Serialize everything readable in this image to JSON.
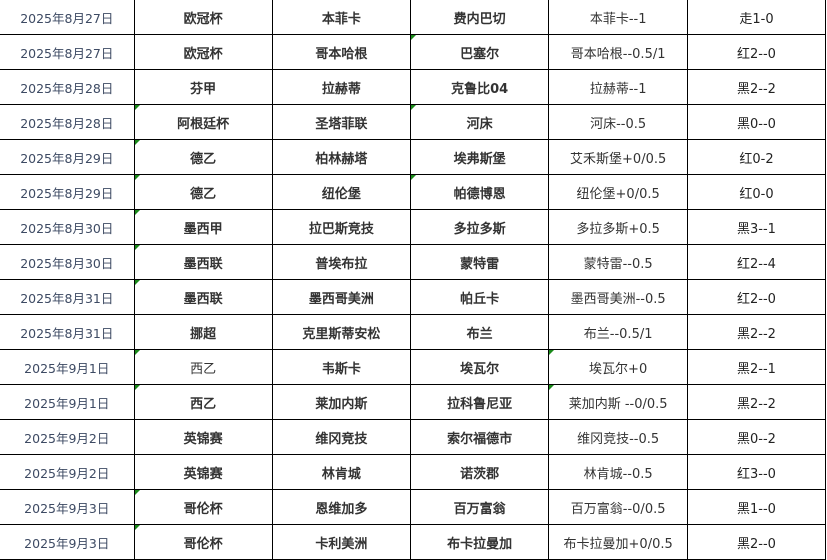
{
  "marker_color": "#1a8a1a",
  "rows": [
    {
      "date": "2025年8月27日",
      "league": "欧冠杯",
      "home": "本菲卡",
      "away": "费内巴切",
      "tip": "本菲卡--1",
      "result": "走1-0",
      "marks": []
    },
    {
      "date": "2025年8月27日",
      "league": "欧冠杯",
      "home": "哥本哈根",
      "away": "巴塞尔",
      "tip": "哥本哈根--0.5/1",
      "result": "红2--0",
      "marks": [
        "away"
      ]
    },
    {
      "date": "2025年8月28日",
      "league": "芬甲",
      "home": "拉赫蒂",
      "away": "克鲁比04",
      "tip": "拉赫蒂--1",
      "result": "黑2--2",
      "marks": []
    },
    {
      "date": "2025年8月28日",
      "league": "阿根廷杯",
      "home": "圣塔菲联",
      "away": "河床",
      "tip": "河床--0.5",
      "result": "黑0--0",
      "marks": [
        "league",
        "away"
      ]
    },
    {
      "date": "2025年8月29日",
      "league": "德乙",
      "home": "柏林赫塔",
      "away": "埃弗斯堡",
      "tip": "艾禾斯堡+0/0.5",
      "result": "红0-2",
      "marks": [
        "league"
      ]
    },
    {
      "date": "2025年8月29日",
      "league": "德乙",
      "home": "纽伦堡",
      "away": "帕德博恩",
      "tip": "纽伦堡+0/0.5",
      "result": "红0-0",
      "marks": [
        "league",
        "away"
      ]
    },
    {
      "date": "2025年8月30日",
      "league": "墨西甲",
      "home": "拉巴斯竞技",
      "away": "多拉多斯",
      "tip": "多拉多斯+0.5",
      "result": "黑3--1",
      "marks": [
        "league"
      ]
    },
    {
      "date": "2025年8月30日",
      "league": "墨西联",
      "home": "普埃布拉",
      "away": "蒙特雷",
      "tip": "蒙特雷--0.5",
      "result": "红2--4",
      "marks": [
        "league"
      ]
    },
    {
      "date": "2025年8月31日",
      "league": "墨西联",
      "home": "墨西哥美洲",
      "away": "帕丘卡",
      "tip": "墨西哥美洲--0.5",
      "result": "红2--0",
      "marks": [
        "league"
      ]
    },
    {
      "date": "2025年8月31日",
      "league": "挪超",
      "home": "克里斯蒂安松",
      "away": "布兰",
      "tip": "布兰--0.5/1",
      "result": "黑2--2",
      "marks": []
    },
    {
      "date": "2025年9月1日",
      "league": "西乙",
      "home": "韦斯卡",
      "away": "埃瓦尔",
      "tip": "埃瓦尔+0",
      "result": "黑2--1",
      "marks": [
        "league",
        "tip"
      ],
      "league_normal": true
    },
    {
      "date": "2025年9月1日",
      "league": "西乙",
      "home": "莱加内斯",
      "away": "拉科鲁尼亚",
      "tip": "莱加内斯 --0/0.5",
      "result": "黑2--2",
      "marks": [
        "league",
        "tip"
      ]
    },
    {
      "date": "2025年9月2日",
      "league": "英锦赛",
      "home": "维冈竞技",
      "away": "索尔福德市",
      "tip": "维冈竞技--0.5",
      "result": "黑0--2",
      "marks": []
    },
    {
      "date": "2025年9月2日",
      "league": "英锦赛",
      "home": "林肯城",
      "away": "诺茨郡",
      "tip": "林肯城--0.5",
      "result": "红3--0",
      "marks": []
    },
    {
      "date": "2025年9月3日",
      "league": "哥伦杯",
      "home": "恩维加多",
      "away": "百万富翁",
      "tip": "百万富翁--0/0.5",
      "result": "黑1--0",
      "marks": [
        "league"
      ]
    },
    {
      "date": "2025年9月3日",
      "league": "哥伦杯",
      "home": "卡利美洲",
      "away": "布卡拉曼加",
      "tip": "布卡拉曼加+0/0.5",
      "result": "黑2--0",
      "marks": [
        "league"
      ]
    }
  ]
}
